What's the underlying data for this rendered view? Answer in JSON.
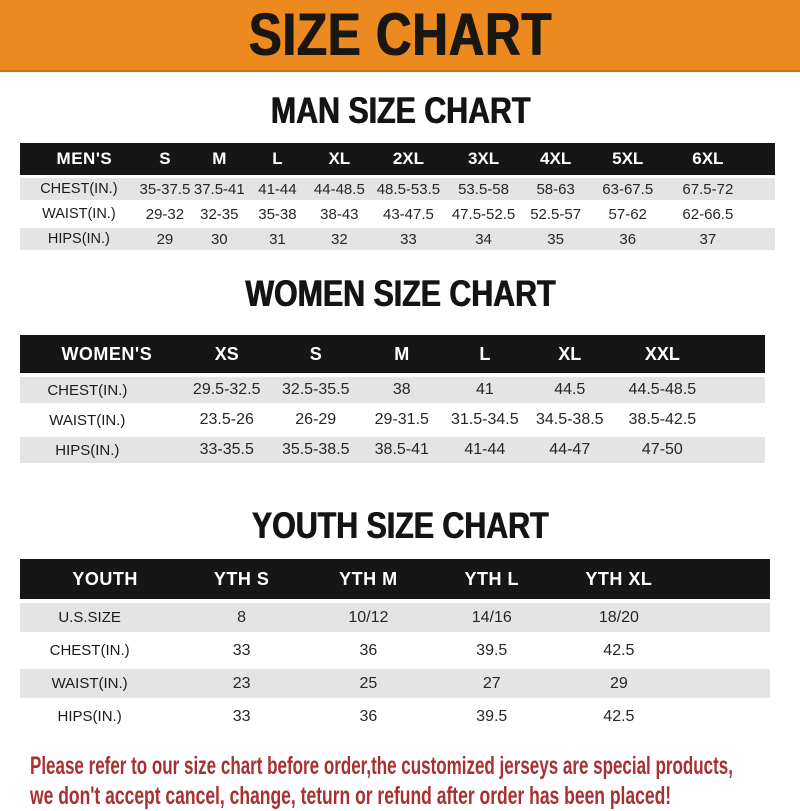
{
  "banner": {
    "title": "SIZE CHART"
  },
  "colors": {
    "banner_orange": "#ED8A1F",
    "header_black": "#161616",
    "stripe_gray": "#E4E4E4",
    "footer_red": "#A93030",
    "title_text": "#1A1712"
  },
  "sections": {
    "men": {
      "heading": "MAN SIZE CHART",
      "table": {
        "label": "MEN'S",
        "columns": [
          "S",
          "M",
          "L",
          "XL",
          "2XL",
          "3XL",
          "4XL",
          "5XL",
          "6XL"
        ],
        "rows": [
          {
            "label": "CHEST(IN.)",
            "values": [
              "35-37.5",
              "37.5-41",
              "41-44",
              "44-48.5",
              "48.5-53.5",
              "53.5-58",
              "58-63",
              "63-67.5",
              "67.5-72"
            ]
          },
          {
            "label": "WAIST(IN.)",
            "values": [
              "29-32",
              "32-35",
              "35-38",
              "38-43",
              "43-47.5",
              "47.5-52.5",
              "52.5-57",
              "57-62",
              "62-66.5"
            ]
          },
          {
            "label": "HIPS(IN.)",
            "values": [
              "29",
              "30",
              "31",
              "32",
              "33",
              "34",
              "35",
              "36",
              "37"
            ]
          }
        ]
      }
    },
    "women": {
      "heading": "WOMEN SIZE CHART",
      "table": {
        "label": "WOMEN'S",
        "columns": [
          "XS",
          "S",
          "M",
          "L",
          "XL",
          "XXL"
        ],
        "rows": [
          {
            "label": "CHEST(IN.)",
            "values": [
              "29.5-32.5",
              "32.5-35.5",
              "38",
              "41",
              "44.5",
              "44.5-48.5"
            ]
          },
          {
            "label": "WAIST(IN.)",
            "values": [
              "23.5-26",
              "26-29",
              "29-31.5",
              "31.5-34.5",
              "34.5-38.5",
              "38.5-42.5"
            ]
          },
          {
            "label": "HIPS(IN.)",
            "values": [
              "33-35.5",
              "35.5-38.5",
              "38.5-41",
              "41-44",
              "44-47",
              "47-50"
            ]
          }
        ]
      }
    },
    "youth": {
      "heading": "YOUTH SIZE CHART",
      "table": {
        "label": "YOUTH",
        "columns": [
          "YTH S",
          "YTH M",
          "YTH L",
          "YTH XL"
        ],
        "rows": [
          {
            "label": "U.S.SIZE",
            "values": [
              "8",
              "10/12",
              "14/16",
              "18/20"
            ]
          },
          {
            "label": "CHEST(IN.)",
            "values": [
              "33",
              "36",
              "39.5",
              "42.5"
            ]
          },
          {
            "label": "WAIST(IN.)",
            "values": [
              "23",
              "25",
              "27",
              "29"
            ]
          },
          {
            "label": "HIPS(IN.)",
            "values": [
              "33",
              "36",
              "39.5",
              "42.5"
            ]
          }
        ]
      }
    }
  },
  "footer": {
    "line1": "Please refer to our size chart before order,the customized jerseys are special products,",
    "line2": "we don't accept cancel, change, teturn or refund after order has been placed!"
  }
}
